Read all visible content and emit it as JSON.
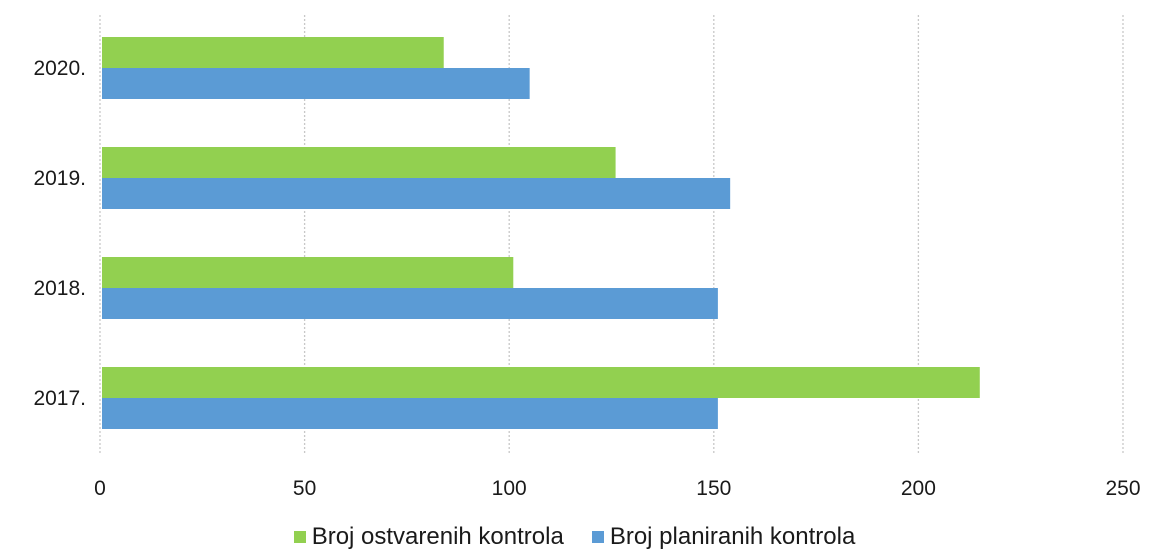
{
  "chart_data": {
    "type": "bar",
    "orientation": "horizontal",
    "categories": [
      "2020.",
      "2019.",
      "2018.",
      "2017."
    ],
    "series": [
      {
        "name": "Broj ostvarenih kontrola",
        "color": "#92d050",
        "values": [
          84,
          126,
          101,
          215
        ]
      },
      {
        "name": "Broj planiranih kontrola",
        "color": "#5b9bd5",
        "values": [
          105,
          154,
          151,
          151
        ]
      }
    ],
    "x_ticks": [
      "0",
      "50",
      "100",
      "150",
      "200",
      "250"
    ],
    "xlim": [
      0,
      250
    ],
    "grid": true,
    "legend_position": "bottom"
  }
}
